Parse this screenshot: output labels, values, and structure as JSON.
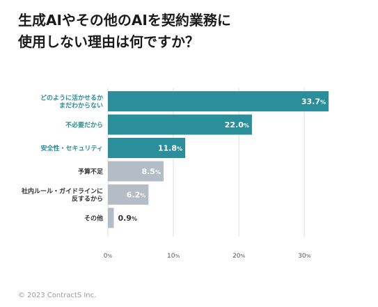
{
  "title_lines": [
    "生成AIやその他のAIを契約業務に",
    "使用しない理由は何ですか？"
  ],
  "copyright": "© 2023 ContractS Inc.",
  "colors": {
    "highlight": "#2a8f9a",
    "muted": "#b4bcc6",
    "highlight_label": "#2a8f9a",
    "muted_label": "#333333",
    "grid": "#dddddd"
  },
  "chart_data": {
    "type": "bar",
    "orientation": "horizontal",
    "categories": [
      [
        "どのように活かせるか",
        "まだわからない"
      ],
      [
        "不必要だから"
      ],
      [
        "安全性・セキュリティ"
      ],
      [
        "予算不足"
      ],
      [
        "社内ルール・ガイドラインに",
        "反するから"
      ],
      [
        "その他"
      ]
    ],
    "values": [
      33.7,
      22.0,
      11.8,
      8.5,
      6.2,
      0.9
    ],
    "value_labels": [
      "33.7",
      "22.0",
      "11.8",
      "8.5",
      "6.2",
      "0.9"
    ],
    "value_unit": "%",
    "highlighted": [
      true,
      true,
      true,
      false,
      false,
      false
    ],
    "xlim": [
      0,
      33.7
    ],
    "xticks": [
      0,
      10,
      20,
      30
    ],
    "xtick_labels": [
      "0",
      "10",
      "20",
      "30"
    ],
    "xtick_unit": "%",
    "grid": true
  }
}
